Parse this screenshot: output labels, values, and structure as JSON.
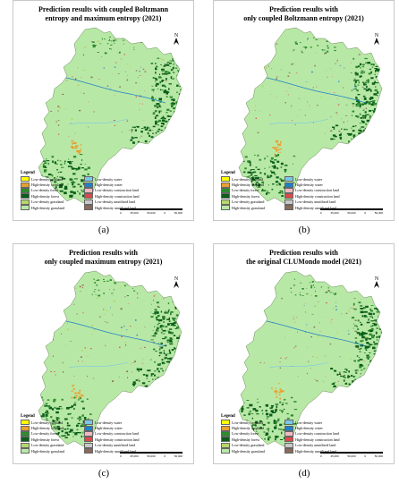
{
  "colors": {
    "low_density_cropland": "#ffff00",
    "high_density_cropland": "#e8a030",
    "low_density_forest": "#2e8b2e",
    "high_density_forest": "#0b5e1a",
    "low_density_grassland": "#b6d66e",
    "high_density_grassland": "#b8e8a6",
    "low_density_water": "#79c8e8",
    "high_density_water": "#1f7fc8",
    "low_density_construction": "#f6b8c0",
    "high_density_construction": "#e04848",
    "low_density_unutilized": "#c8c8c8",
    "high_density_unutilized": "#8a6a5a"
  },
  "legend": {
    "title": "Legend",
    "left": [
      {
        "label": "Low-density cropland",
        "color": "#ffff00"
      },
      {
        "label": "High-density cropland",
        "color": "#e8a030"
      },
      {
        "label": "Low-density forest",
        "color": "#2e8b2e"
      },
      {
        "label": "High-density forest",
        "color": "#0b5e1a"
      },
      {
        "label": "Low-density grassland",
        "color": "#b6d66e"
      },
      {
        "label": "High-density grassland",
        "color": "#b8e8a6"
      }
    ],
    "right": [
      {
        "label": "Low-density water",
        "color": "#79c8e8"
      },
      {
        "label": "High-density water",
        "color": "#1f7fc8"
      },
      {
        "label": "Low-density construction land",
        "color": "#f6b8c0"
      },
      {
        "label": "High-density construction land",
        "color": "#e04848"
      },
      {
        "label": "Low-density unutilized land",
        "color": "#c8c8c8"
      },
      {
        "label": "High-density unutilized land",
        "color": "#8a6a5a"
      }
    ]
  },
  "scale": {
    "labels": [
      "0",
      "25,000",
      "50,000",
      "0",
      "50,000"
    ]
  },
  "north_label": "N",
  "panels": [
    {
      "title": "Prediction results with coupled Boltzmann\nentropy and  maximum entropy (2021)",
      "caption": "(a)"
    },
    {
      "title": "Prediction results with\nonly coupled Boltzmann entropy (2021)",
      "caption": "(b)"
    },
    {
      "title": "Prediction results with\nonly coupled maximum entropy (2021)",
      "caption": "(c)"
    },
    {
      "title": "Prediction results with\nthe original CLUMondo model (2021)",
      "caption": "(d)"
    }
  ]
}
